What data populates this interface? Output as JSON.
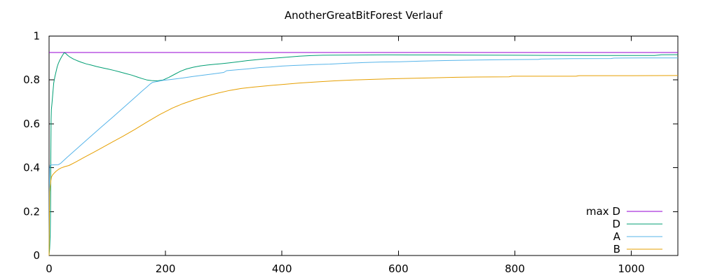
{
  "chart_data": {
    "type": "line",
    "title": "AnotherGreatBitForest Verlauf",
    "xlabel": "",
    "ylabel": "",
    "xlim": [
      0,
      1080
    ],
    "ylim": [
      0,
      1
    ],
    "grid": false,
    "legend_position": "inside-bottom-right",
    "axis_color": "#000000",
    "x_ticks": [
      {
        "v": 0,
        "label": "0"
      },
      {
        "v": 200,
        "label": "200"
      },
      {
        "v": 400,
        "label": "400"
      },
      {
        "v": 600,
        "label": "600"
      },
      {
        "v": 800,
        "label": "800"
      },
      {
        "v": 1000,
        "label": "1000"
      }
    ],
    "y_ticks": [
      {
        "v": 0,
        "label": "0"
      },
      {
        "v": 0.2,
        "label": "0.2"
      },
      {
        "v": 0.4,
        "label": "0.4"
      },
      {
        "v": 0.6,
        "label": "0.6"
      },
      {
        "v": 0.8,
        "label": "0.8"
      },
      {
        "v": 1,
        "label": "1"
      }
    ],
    "series": [
      {
        "name": "max D",
        "color": "#9400d3",
        "points": [
          [
            0,
            0.925
          ],
          [
            1080,
            0.925
          ]
        ]
      },
      {
        "name": "D",
        "color": "#009e73",
        "points": [
          [
            0,
            0
          ],
          [
            1,
            0.03
          ],
          [
            2,
            0.1
          ],
          [
            2.5,
            0.2
          ],
          [
            3,
            0.45
          ],
          [
            3.5,
            0.62
          ],
          [
            4,
            0.665
          ],
          [
            5,
            0.695
          ],
          [
            6,
            0.725
          ],
          [
            7,
            0.755
          ],
          [
            8,
            0.785
          ],
          [
            10,
            0.815
          ],
          [
            12,
            0.838
          ],
          [
            14,
            0.86
          ],
          [
            16,
            0.876
          ],
          [
            18,
            0.888
          ],
          [
            20,
            0.898
          ],
          [
            23,
            0.912
          ],
          [
            26,
            0.924
          ],
          [
            29,
            0.92
          ],
          [
            32,
            0.912
          ],
          [
            36,
            0.904
          ],
          [
            42,
            0.895
          ],
          [
            48,
            0.888
          ],
          [
            56,
            0.88
          ],
          [
            64,
            0.873
          ],
          [
            72,
            0.868
          ],
          [
            82,
            0.861
          ],
          [
            92,
            0.855
          ],
          [
            102,
            0.849
          ],
          [
            112,
            0.843
          ],
          [
            122,
            0.836
          ],
          [
            132,
            0.829
          ],
          [
            142,
            0.822
          ],
          [
            152,
            0.813
          ],
          [
            160,
            0.806
          ],
          [
            168,
            0.8
          ],
          [
            176,
            0.797
          ],
          [
            186,
            0.796
          ],
          [
            196,
            0.8
          ],
          [
            206,
            0.812
          ],
          [
            216,
            0.826
          ],
          [
            226,
            0.84
          ],
          [
            236,
            0.85
          ],
          [
            248,
            0.858
          ],
          [
            260,
            0.864
          ],
          [
            272,
            0.868
          ],
          [
            284,
            0.871
          ],
          [
            296,
            0.874
          ],
          [
            310,
            0.878
          ],
          [
            325,
            0.883
          ],
          [
            340,
            0.888
          ],
          [
            355,
            0.892
          ],
          [
            370,
            0.896
          ],
          [
            385,
            0.899
          ],
          [
            400,
            0.902
          ],
          [
            415,
            0.905
          ],
          [
            430,
            0.908
          ],
          [
            450,
            0.911
          ],
          [
            470,
            0.9125
          ],
          [
            490,
            0.9132
          ],
          [
            520,
            0.9136
          ],
          [
            550,
            0.914
          ],
          [
            580,
            0.9142
          ],
          [
            620,
            0.914
          ],
          [
            660,
            0.9138
          ],
          [
            700,
            0.9135
          ],
          [
            740,
            0.913
          ],
          [
            800,
            0.9125
          ],
          [
            860,
            0.912
          ],
          [
            920,
            0.9118
          ],
          [
            980,
            0.9115
          ],
          [
            1040,
            0.9112
          ],
          [
            1052,
            0.9145
          ],
          [
            1080,
            0.915
          ]
        ]
      },
      {
        "name": "A",
        "color": "#56b4e9",
        "points": [
          [
            0,
            0
          ],
          [
            0.5,
            0.28
          ],
          [
            1,
            0.4
          ],
          [
            2,
            0.412
          ],
          [
            16,
            0.414
          ],
          [
            20,
            0.42
          ],
          [
            30,
            0.445
          ],
          [
            50,
            0.492
          ],
          [
            70,
            0.539
          ],
          [
            90,
            0.586
          ],
          [
            110,
            0.632
          ],
          [
            130,
            0.679
          ],
          [
            150,
            0.726
          ],
          [
            160,
            0.75
          ],
          [
            168,
            0.768
          ],
          [
            174,
            0.782
          ],
          [
            178,
            0.789
          ],
          [
            186,
            0.793
          ],
          [
            196,
            0.798
          ],
          [
            206,
            0.801
          ],
          [
            216,
            0.804
          ],
          [
            230,
            0.809
          ],
          [
            245,
            0.815
          ],
          [
            260,
            0.82
          ],
          [
            280,
            0.827
          ],
          [
            300,
            0.834
          ],
          [
            305,
            0.842
          ],
          [
            322,
            0.846
          ],
          [
            340,
            0.85
          ],
          [
            361,
            0.856
          ],
          [
            380,
            0.859
          ],
          [
            400,
            0.863
          ],
          [
            420,
            0.866
          ],
          [
            440,
            0.868
          ],
          [
            460,
            0.8705
          ],
          [
            482,
            0.872
          ],
          [
            510,
            0.876
          ],
          [
            540,
            0.879
          ],
          [
            570,
            0.8815
          ],
          [
            602,
            0.883
          ],
          [
            640,
            0.886
          ],
          [
            680,
            0.8885
          ],
          [
            735,
            0.891
          ],
          [
            780,
            0.8925
          ],
          [
            840,
            0.8935
          ],
          [
            845,
            0.8955
          ],
          [
            900,
            0.897
          ],
          [
            965,
            0.8975
          ],
          [
            970,
            0.8995
          ],
          [
            1020,
            0.9
          ],
          [
            1080,
            0.9
          ]
        ]
      },
      {
        "name": "B",
        "color": "#e69f00",
        "points": [
          [
            0,
            0
          ],
          [
            0.5,
            0.15
          ],
          [
            1,
            0.29
          ],
          [
            1.5,
            0.305
          ],
          [
            2,
            0.32
          ],
          [
            3,
            0.34
          ],
          [
            4,
            0.357
          ],
          [
            6,
            0.367
          ],
          [
            9,
            0.376
          ],
          [
            12,
            0.384
          ],
          [
            16,
            0.392
          ],
          [
            20,
            0.398
          ],
          [
            27,
            0.405
          ],
          [
            34,
            0.41
          ],
          [
            45,
            0.425
          ],
          [
            60,
            0.447
          ],
          [
            75,
            0.468
          ],
          [
            90,
            0.49
          ],
          [
            108,
            0.516
          ],
          [
            126,
            0.542
          ],
          [
            147,
            0.574
          ],
          [
            168,
            0.608
          ],
          [
            190,
            0.642
          ],
          [
            212,
            0.672
          ],
          [
            230,
            0.692
          ],
          [
            250,
            0.71
          ],
          [
            270,
            0.726
          ],
          [
            290,
            0.74
          ],
          [
            310,
            0.752
          ],
          [
            330,
            0.761
          ],
          [
            350,
            0.767
          ],
          [
            372,
            0.773
          ],
          [
            400,
            0.779
          ],
          [
            430,
            0.786
          ],
          [
            460,
            0.791
          ],
          [
            490,
            0.796
          ],
          [
            522,
            0.8
          ],
          [
            560,
            0.803
          ],
          [
            602,
            0.806
          ],
          [
            650,
            0.809
          ],
          [
            700,
            0.812
          ],
          [
            735,
            0.8135
          ],
          [
            790,
            0.8145
          ],
          [
            795,
            0.817
          ],
          [
            850,
            0.817
          ],
          [
            905,
            0.817
          ],
          [
            910,
            0.8195
          ],
          [
            1000,
            0.8195
          ],
          [
            1080,
            0.82
          ]
        ]
      }
    ]
  }
}
